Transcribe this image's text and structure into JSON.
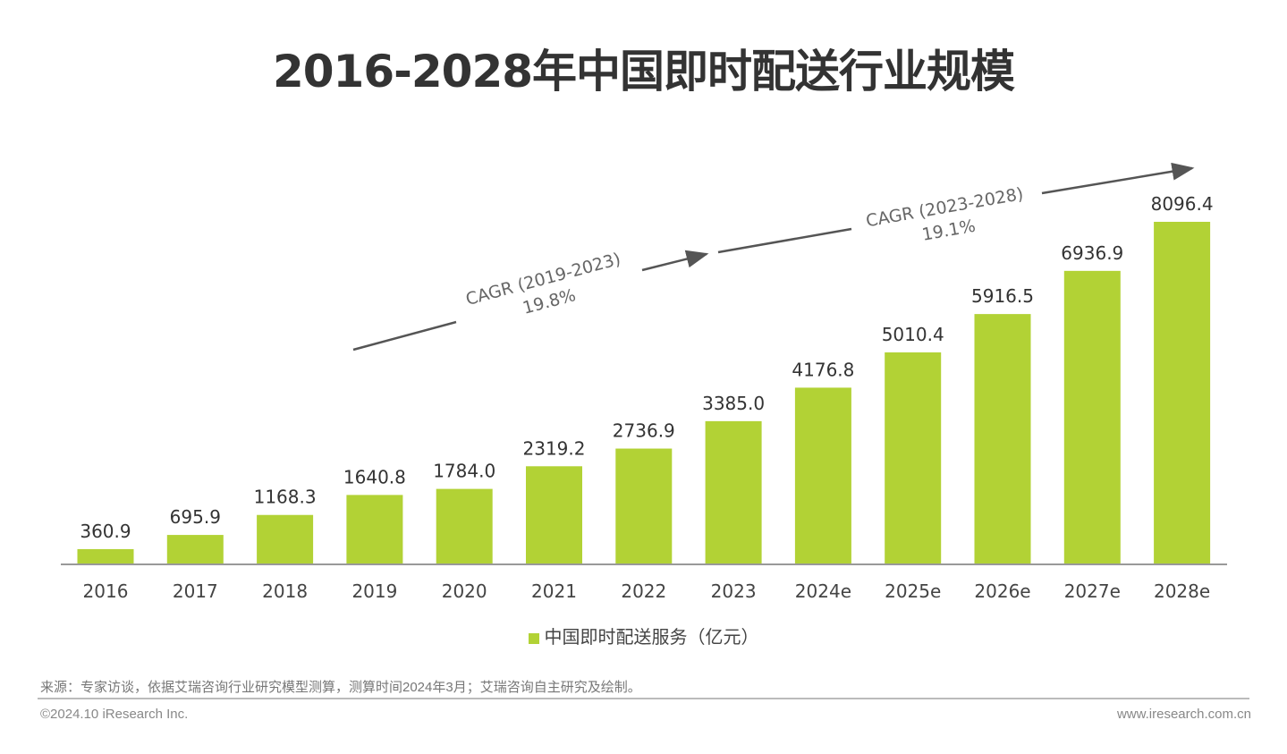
{
  "chart_data": {
    "type": "bar",
    "title": "2016-2028年中国即时配送行业规模",
    "categories": [
      "2016",
      "2017",
      "2018",
      "2019",
      "2020",
      "2021",
      "2022",
      "2023",
      "2024e",
      "2025e",
      "2026e",
      "2027e",
      "2028e"
    ],
    "series": [
      {
        "name": "中国即时配送服务（亿元）",
        "values": [
          360.9,
          695.9,
          1168.3,
          1640.8,
          1784.0,
          2319.2,
          2736.9,
          3385.0,
          4176.8,
          5010.4,
          5916.5,
          6936.9,
          8096.4
        ],
        "labels": [
          "360.9",
          "695.9",
          "1168.3",
          "1640.8",
          "1784.0",
          "2319.2",
          "2736.9",
          "3385.0",
          "4176.8",
          "5010.4",
          "5916.5",
          "6936.9",
          "8096.4"
        ],
        "color": "#b2d235"
      }
    ],
    "ylim": [
      0,
      8096.4
    ],
    "grid": false,
    "legend_position": "bottom",
    "annotations": [
      {
        "label": "CAGR (2019-2023)",
        "value": "19.8%"
      },
      {
        "label": "CAGR (2023-2028)",
        "value": "19.1%"
      }
    ]
  },
  "footer": {
    "source": "来源：专家访谈，依据艾瑞咨询行业研究模型测算，测算时间2024年3月；艾瑞咨询自主研究及绘制。",
    "copyright": "©2024.10 iResearch Inc.",
    "website": "www.iresearch.com.cn"
  }
}
